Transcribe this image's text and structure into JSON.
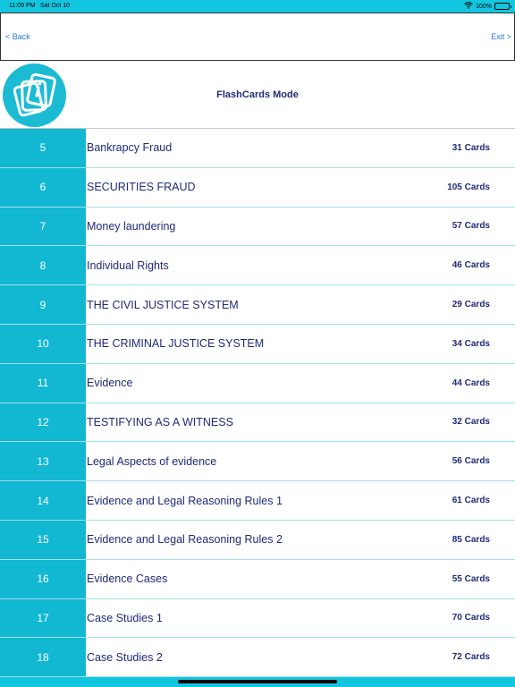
{
  "status_bar": {
    "time": "11:09 PM",
    "date": "Sat Oct 10",
    "battery": "100%",
    "wifi_icon": "wifi-icon",
    "battery_icon": "battery-icon"
  },
  "nav": {
    "back_label": "<  Back",
    "exit_label": "Exit >"
  },
  "header": {
    "title": "FlashCards Mode",
    "logo_icon": "flashcards-logo-icon"
  },
  "colors": {
    "accent": "#12b7d2",
    "title_text": "#1f2a7a",
    "link": "#1e7bd8"
  },
  "items": [
    {
      "num": "5",
      "title": "Bankrapcy Fraud",
      "count": "31 Cards"
    },
    {
      "num": "6",
      "title": "SECURITIES FRAUD",
      "count": "105 Cards"
    },
    {
      "num": "7",
      "title": "Money laundering",
      "count": "57 Cards"
    },
    {
      "num": "8",
      "title": "Individual Rights",
      "count": "46 Cards"
    },
    {
      "num": "9",
      "title": "THE CIVIL JUSTICE SYSTEM",
      "count": "29 Cards"
    },
    {
      "num": "10",
      "title": "THE CRIMINAL JUSTICE SYSTEM",
      "count": "34 Cards"
    },
    {
      "num": "11",
      "title": "Evidence",
      "count": "44 Cards"
    },
    {
      "num": "12",
      "title": "TESTIFYING AS A WITNESS",
      "count": "32 Cards"
    },
    {
      "num": "13",
      "title": "Legal Aspects of evidence",
      "count": "56 Cards"
    },
    {
      "num": "14",
      "title": "Evidence and Legal Reasoning Rules 1",
      "count": "61 Cards"
    },
    {
      "num": "15",
      "title": "Evidence and Legal Reasoning Rules 2",
      "count": "85 Cards"
    },
    {
      "num": "16",
      "title": "Evidence Cases",
      "count": "55 Cards"
    },
    {
      "num": "17",
      "title": "Case Studies 1",
      "count": "70 Cards"
    },
    {
      "num": "18",
      "title": "Case Studies 2",
      "count": "72 Cards"
    }
  ]
}
